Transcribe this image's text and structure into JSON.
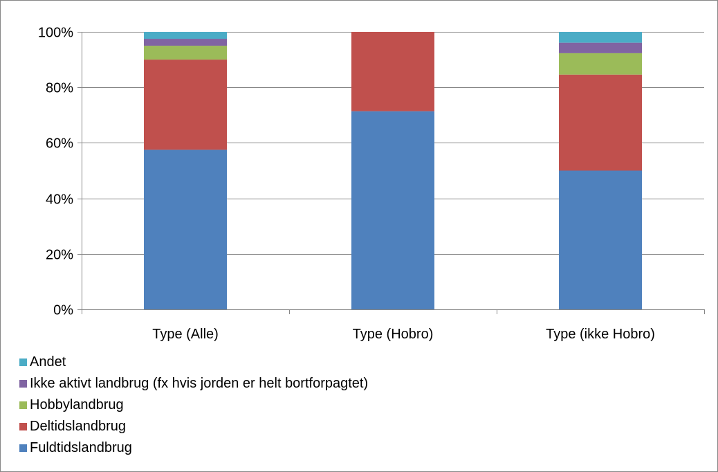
{
  "chart_data": {
    "type": "bar",
    "stacked": true,
    "percent_stacked": true,
    "categories": [
      "Type (Alle)",
      "Type (Hobro)",
      "Type (ikke Hobro)"
    ],
    "y_ticks": [
      "0%",
      "20%",
      "40%",
      "60%",
      "80%",
      "100%"
    ],
    "ylim": [
      0,
      100
    ],
    "grid": true,
    "legend_position": "bottom-left",
    "series": [
      {
        "name": "Fuldtidslandbrug",
        "color": "#4F81BD",
        "values": [
          57.5,
          71.4,
          50.0
        ]
      },
      {
        "name": "Deltidslandbrug",
        "color": "#C0504D",
        "values": [
          32.5,
          28.6,
          34.6
        ]
      },
      {
        "name": "Hobbylandbrug",
        "color": "#9BBB59",
        "values": [
          5.0,
          0,
          7.7
        ]
      },
      {
        "name": "Ikke aktivt landbrug (fx hvis jorden er helt bortforpagtet)",
        "color": "#8064A2",
        "values": [
          2.5,
          0,
          3.8
        ]
      },
      {
        "name": "Andet",
        "color": "#4BACC6",
        "values": [
          2.5,
          0,
          3.9
        ]
      }
    ],
    "legend_order": [
      "Andet",
      "Ikke aktivt landbrug (fx hvis jorden er helt bortforpagtet)",
      "Hobbylandbrug",
      "Deltidslandbrug",
      "Fuldtidslandbrug"
    ]
  }
}
